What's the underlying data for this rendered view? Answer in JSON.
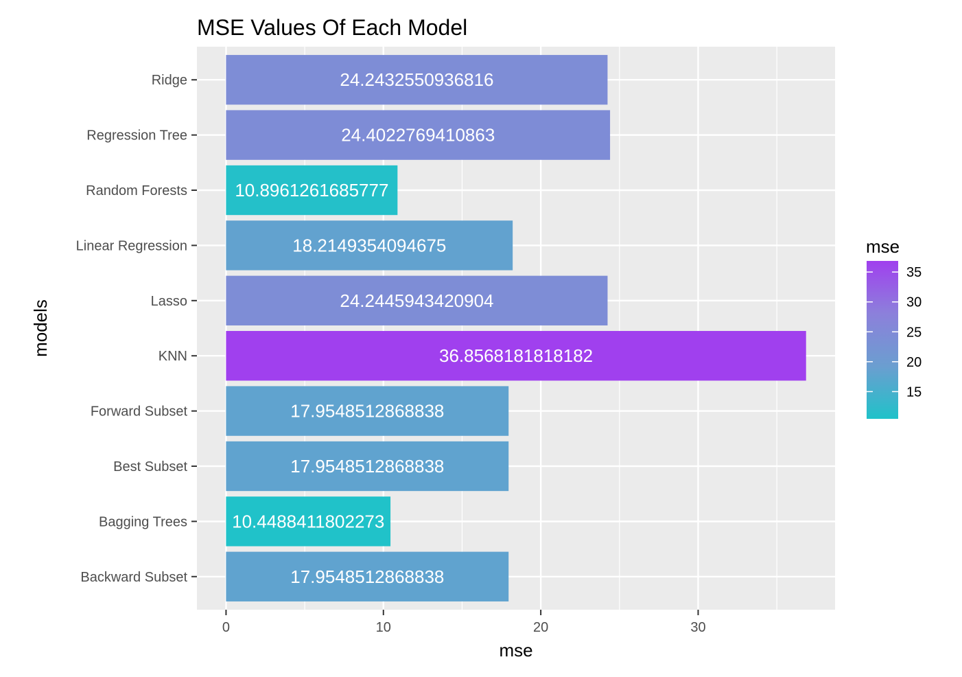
{
  "chart_data": {
    "type": "bar",
    "orientation": "horizontal",
    "title": "MSE Values Of Each Model",
    "xlabel": "mse",
    "ylabel": "models",
    "xlim": [
      -1.85,
      38.7
    ],
    "xticks": [
      0,
      10,
      20,
      30
    ],
    "grid": true,
    "categories": [
      "Backward Subset",
      "Bagging Trees",
      "Best Subset",
      "Forward Subset",
      "KNN",
      "Lasso",
      "Linear Regression",
      "Random Forests",
      "Regression Tree",
      "Ridge"
    ],
    "values": [
      17.9548512868838,
      10.4488411802273,
      17.9548512868838,
      17.9548512868838,
      36.8568181818182,
      24.2445943420904,
      18.2149354094675,
      10.8961261685777,
      24.4022769410863,
      24.2432550936816
    ],
    "labels": [
      "17.9548512868838",
      "10.4488411802273",
      "17.9548512868838",
      "17.9548512868838",
      "36.8568181818182",
      "24.2445943420904",
      "18.2149354094675",
      "10.8961261685777",
      "24.4022769410863",
      "24.2432550936816"
    ],
    "legend": {
      "title": "mse",
      "position": "right",
      "ticks": [
        15,
        20,
        25,
        30,
        35
      ],
      "range": [
        10.4488411802273,
        36.8568181818182
      ],
      "colors": [
        "#20c2c9",
        "#6b9ed0",
        "#8c80db",
        "#a040ee"
      ]
    },
    "colors": {
      "panel_background": "#ebebeb",
      "grid": "#ffffff",
      "bar_label": "#ffffff",
      "axis_text": "#4d4d4d",
      "axis_title": "#000000"
    }
  }
}
